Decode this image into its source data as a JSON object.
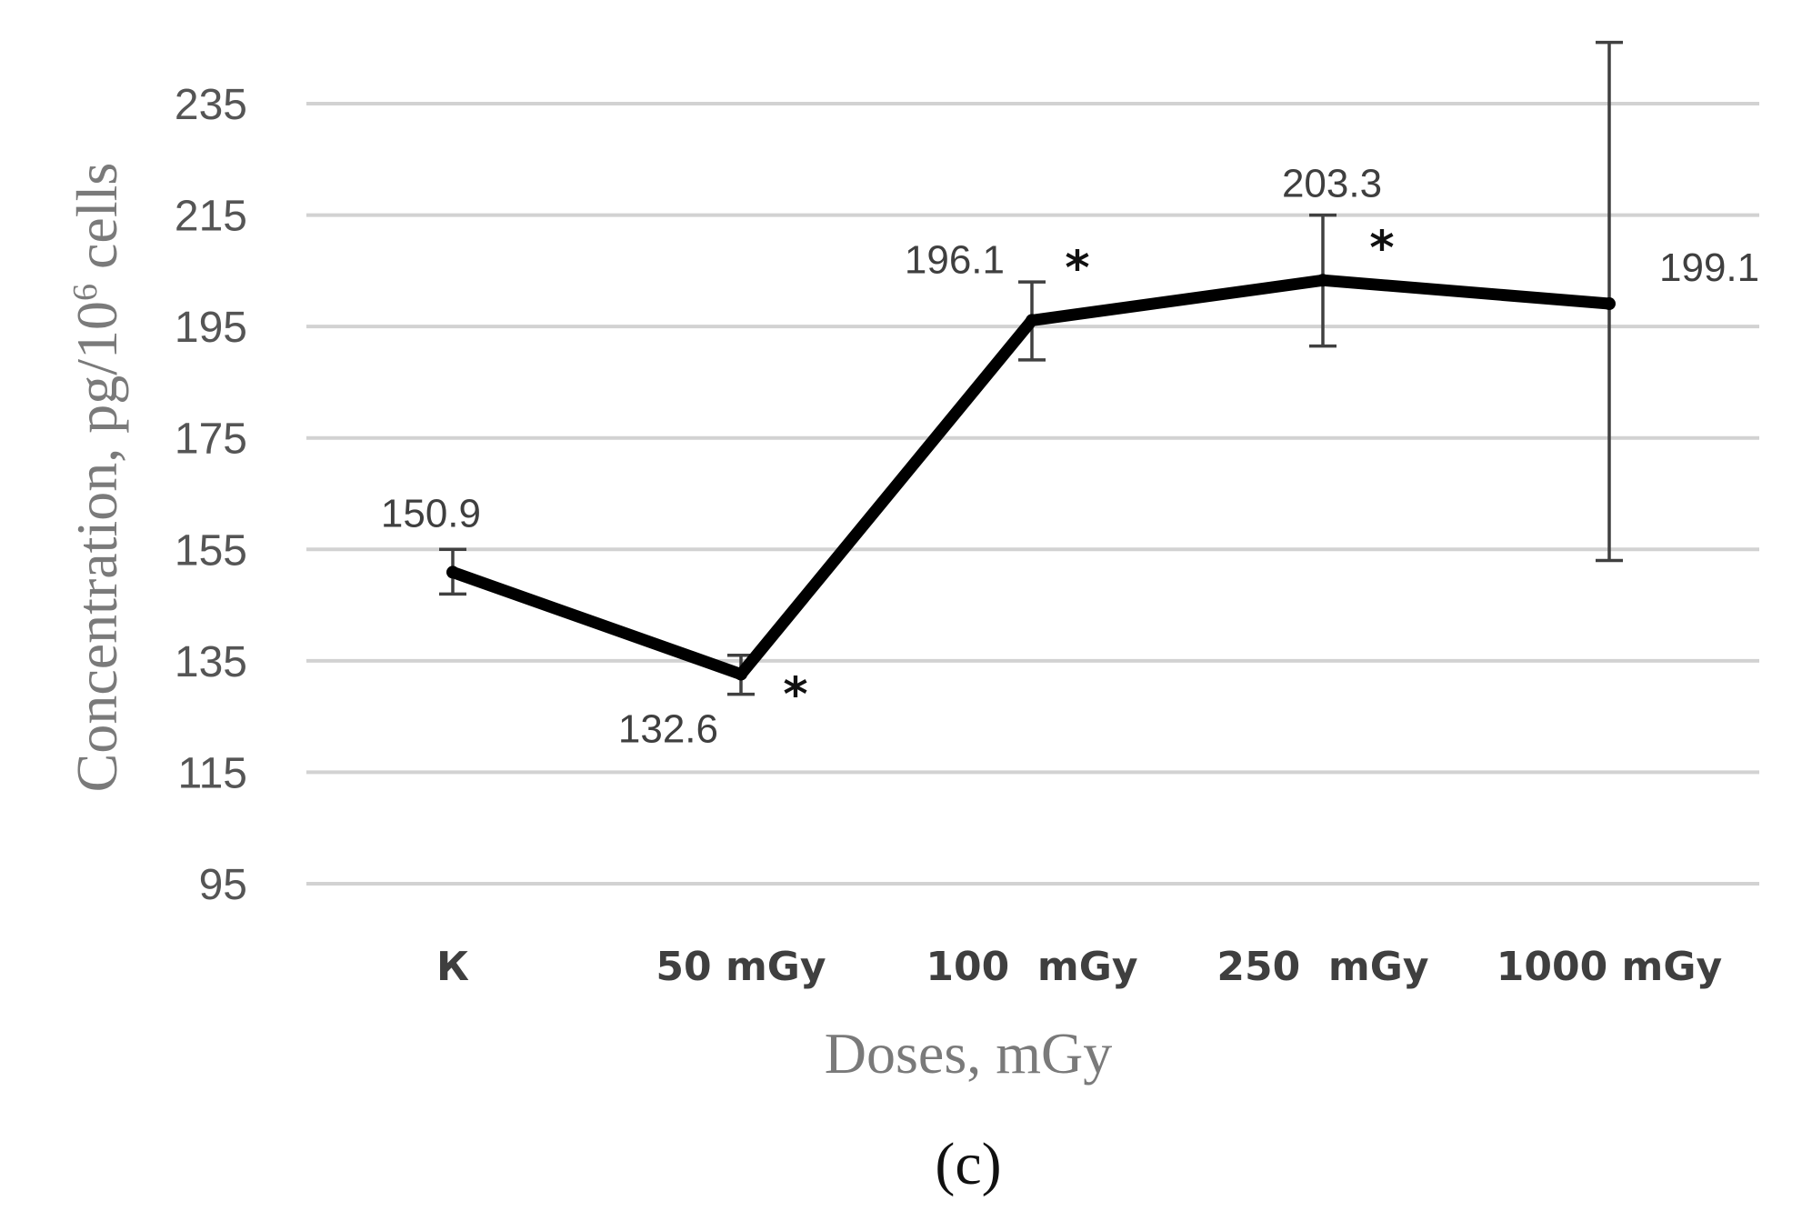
{
  "chart_data": {
    "type": "line",
    "panel_label": "(c)",
    "title": "",
    "xlabel": "Doses, mGy",
    "ylabel_main": "Concentration, pg/10",
    "ylabel_sup": "6",
    "ylabel_tail": " cells",
    "ylim": [
      95,
      235
    ],
    "yticks": [
      95,
      115,
      135,
      155,
      175,
      195,
      215,
      235
    ],
    "grid": true,
    "categories": [
      "К",
      "50 mGy",
      "100  mGy",
      "250  mGy",
      "1000 mGy"
    ],
    "series": [
      {
        "name": "Concentration",
        "values": [
          150.9,
          132.6,
          196.1,
          203.3,
          199.1
        ],
        "value_labels": [
          "150.9",
          "132.6",
          "196.1",
          "203.3",
          "199.1"
        ],
        "error_low": [
          147,
          129,
          189,
          191.5,
          153
        ],
        "error_high": [
          155,
          136,
          203,
          215,
          246
        ],
        "significant": [
          false,
          true,
          true,
          true,
          false
        ],
        "significance_mark": "*"
      }
    ]
  }
}
